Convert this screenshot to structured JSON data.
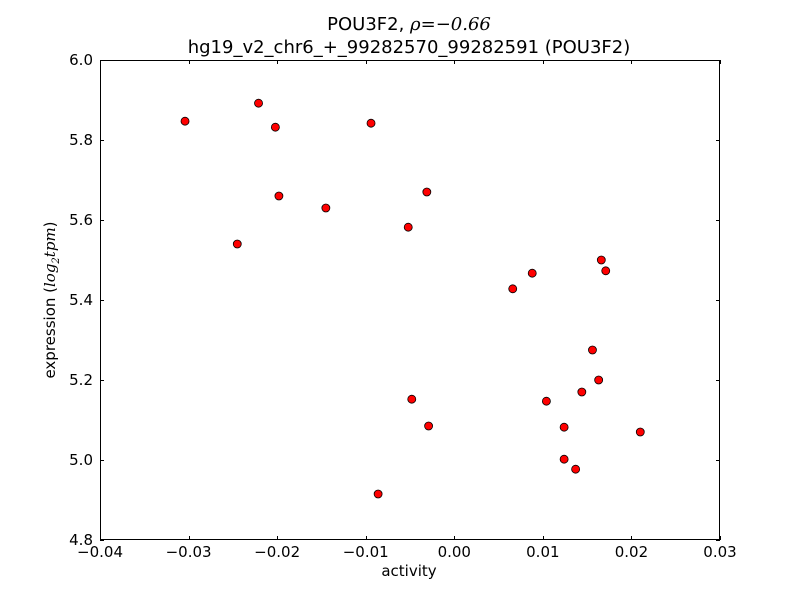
{
  "chart_data": {
    "type": "scatter",
    "title_line1_prefix": "POU3F2, ",
    "title_rho_symbol": "ρ",
    "title_rho_value": "=−0.66",
    "title_line2": "hg19_v2_chr6_+_99282570_99282591 (POU3F2)",
    "xlabel": "activity",
    "ylabel_main": "expression (",
    "ylabel_log": "log",
    "ylabel_sub": "2",
    "ylabel_tpm": "tpm",
    "ylabel_close": ")",
    "xlim": [
      -0.04,
      0.03
    ],
    "ylim": [
      4.8,
      6.0
    ],
    "xticks": [
      -0.04,
      -0.03,
      -0.02,
      -0.01,
      0.0,
      0.01,
      0.02,
      0.03
    ],
    "xtick_labels": [
      "−0.04",
      "−0.03",
      "−0.02",
      "−0.01",
      "0.00",
      "0.01",
      "0.02",
      "0.03"
    ],
    "yticks": [
      4.8,
      5.0,
      5.2,
      5.4,
      5.6,
      5.8,
      6.0
    ],
    "ytick_labels": [
      "4.8",
      "5.0",
      "5.2",
      "5.4",
      "5.6",
      "5.8",
      "6.0"
    ],
    "marker_color": "#ff0000",
    "marker_edge": "#000000",
    "points": [
      {
        "x": -0.0304,
        "y": 5.847
      },
      {
        "x": -0.0221,
        "y": 5.892
      },
      {
        "x": -0.0202,
        "y": 5.832
      },
      {
        "x": -0.0094,
        "y": 5.842
      },
      {
        "x": -0.0198,
        "y": 5.66
      },
      {
        "x": -0.0145,
        "y": 5.63
      },
      {
        "x": -0.0031,
        "y": 5.67
      },
      {
        "x": -0.0052,
        "y": 5.582
      },
      {
        "x": -0.0245,
        "y": 5.54
      },
      {
        "x": 0.0066,
        "y": 5.428
      },
      {
        "x": 0.0088,
        "y": 5.467
      },
      {
        "x": 0.0166,
        "y": 5.5
      },
      {
        "x": 0.0171,
        "y": 5.473
      },
      {
        "x": 0.0156,
        "y": 5.275
      },
      {
        "x": 0.0163,
        "y": 5.2
      },
      {
        "x": 0.0144,
        "y": 5.17
      },
      {
        "x": 0.0104,
        "y": 5.147
      },
      {
        "x": -0.0048,
        "y": 5.152
      },
      {
        "x": -0.0029,
        "y": 5.085
      },
      {
        "x": 0.0124,
        "y": 5.082
      },
      {
        "x": 0.021,
        "y": 5.07
      },
      {
        "x": 0.0124,
        "y": 5.002
      },
      {
        "x": 0.0137,
        "y": 4.977
      },
      {
        "x": -0.0086,
        "y": 4.915
      }
    ]
  }
}
